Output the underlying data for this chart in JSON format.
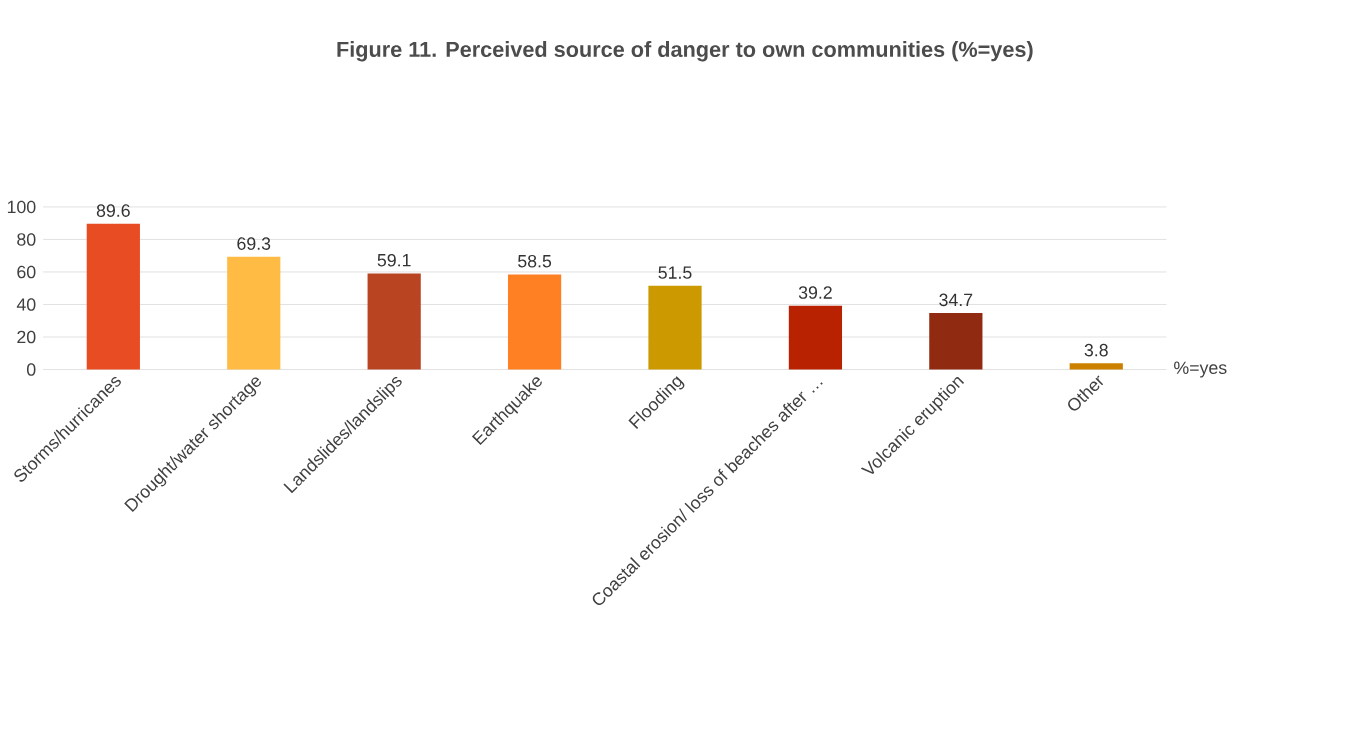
{
  "chart_data": {
    "type": "bar",
    "title": "Figure 11. Perceived source of danger to own communities (%=yes)",
    "categories": [
      "Storms/hurricanes",
      "Drought/water shortage",
      "Landslides/landslips",
      "Earthquake",
      "Flooding",
      "Coastal erosion/ loss of beaches after …",
      "Volcanic eruption",
      "Other"
    ],
    "values": [
      89.6,
      69.3,
      59.1,
      58.5,
      51.5,
      39.2,
      34.7,
      3.8
    ],
    "colors": [
      "#e84c22",
      "#ffbb44",
      "#b84422",
      "#ff8022",
      "#cc9900",
      "#b82200",
      "#902a10",
      "#cc8000"
    ],
    "ylim": [
      0,
      100
    ],
    "yticks": [
      0,
      20,
      40,
      60,
      80,
      100
    ],
    "grid": "y",
    "data_labels": true,
    "annotations": [
      "%=yes"
    ]
  }
}
